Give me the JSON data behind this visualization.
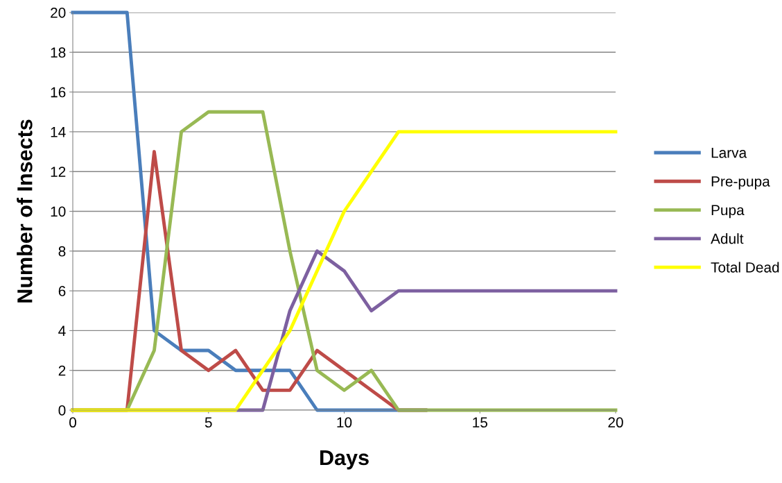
{
  "chart_data": {
    "type": "line",
    "xlabel": "Days",
    "ylabel": "Number of Insects",
    "x": [
      0,
      1,
      2,
      3,
      4,
      5,
      6,
      7,
      8,
      9,
      10,
      11,
      12,
      13,
      14,
      15,
      16,
      17,
      18,
      19,
      20
    ],
    "series": [
      {
        "name": "Larva",
        "color": "#4a7ebb",
        "values": [
          20,
          20,
          20,
          4,
          3,
          3,
          2,
          2,
          2,
          0,
          0,
          0,
          0,
          0,
          null,
          null,
          null,
          null,
          null,
          null,
          null
        ]
      },
      {
        "name": "Pre-pupa",
        "color": "#be4b48",
        "values": [
          0,
          0,
          0,
          13,
          3,
          2,
          3,
          1,
          1,
          3,
          2,
          1,
          0,
          0,
          null,
          null,
          null,
          null,
          null,
          null,
          null
        ]
      },
      {
        "name": "Pupa",
        "color": "#98b954",
        "values": [
          0,
          0,
          0,
          3,
          14,
          15,
          15,
          15,
          8,
          2,
          1,
          2,
          0,
          0,
          0,
          0,
          0,
          0,
          0,
          0,
          0
        ]
      },
      {
        "name": "Adult",
        "color": "#7d60a0",
        "values": [
          0,
          0,
          0,
          0,
          0,
          0,
          0,
          0,
          5,
          8,
          7,
          5,
          6,
          6,
          6,
          6,
          6,
          6,
          6,
          6,
          6
        ]
      },
      {
        "name": "Total Dead",
        "color": "#ffff00",
        "values": [
          0,
          0,
          0,
          0,
          0,
          0,
          0,
          2,
          4,
          7,
          10,
          12,
          14,
          14,
          14,
          14,
          14,
          14,
          14,
          14,
          14
        ]
      }
    ],
    "xlim": [
      0,
      20
    ],
    "xticks": [
      0,
      5,
      10,
      15,
      20
    ],
    "ylim": [
      0,
      20
    ],
    "yticks": [
      0,
      2,
      4,
      6,
      8,
      10,
      12,
      14,
      16,
      18,
      20
    ],
    "grid": "y",
    "legend": "right",
    "marker": "none",
    "line_style": "solid"
  }
}
